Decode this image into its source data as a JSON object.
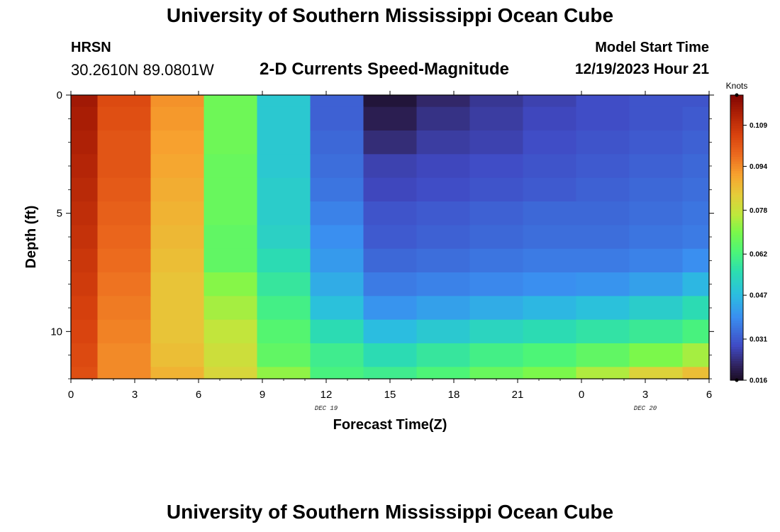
{
  "header": {
    "title": "University of Southern Mississippi Ocean Cube",
    "station": "HRSN",
    "coords": "30.2610N  89.0801W",
    "subtitle": "2-D Currents Speed-Magnitude",
    "start_label": "Model Start Time",
    "start_value": "12/19/2023 Hour 21"
  },
  "footer": {
    "title": "University of Southern Mississippi Ocean Cube"
  },
  "chart_data": {
    "type": "heatmap",
    "title": "2-D Currents Speed-Magnitude",
    "xlabel": "Forecast Time(Z)",
    "ylabel": "Depth (ft)",
    "x_tick_labels": [
      "0",
      "3",
      "6",
      "9",
      "12",
      "15",
      "18",
      "21",
      "0",
      "3",
      "6"
    ],
    "x_range_hours": [
      0,
      30
    ],
    "date_labels": [
      {
        "text": "DEC 19",
        "hour": 12
      },
      {
        "text": "DEC 20",
        "hour": 27
      }
    ],
    "y_ticks": [
      0,
      5,
      10
    ],
    "y_range_ft": [
      0,
      12
    ],
    "time_edges": [
      0,
      1.25,
      3.75,
      6.25,
      8.75,
      11.25,
      13.75,
      16.25,
      18.75,
      21.25,
      23.75,
      26.25,
      28.75,
      30
    ],
    "depth_edges": [
      0,
      0.5,
      1.5,
      2.5,
      3.5,
      4.5,
      5.5,
      6.5,
      7.5,
      8.5,
      9.5,
      10.5,
      11.5,
      12
    ],
    "values": [
      [
        0.115,
        0.104,
        0.093,
        0.068,
        0.05,
        0.032,
        0.018,
        0.022,
        0.025,
        0.027,
        0.029,
        0.03,
        0.03
      ],
      [
        0.114,
        0.103,
        0.092,
        0.068,
        0.05,
        0.032,
        0.02,
        0.024,
        0.026,
        0.028,
        0.029,
        0.03,
        0.031
      ],
      [
        0.113,
        0.102,
        0.091,
        0.068,
        0.05,
        0.033,
        0.023,
        0.026,
        0.027,
        0.029,
        0.03,
        0.031,
        0.032
      ],
      [
        0.112,
        0.102,
        0.09,
        0.067,
        0.05,
        0.034,
        0.027,
        0.028,
        0.029,
        0.03,
        0.031,
        0.032,
        0.033
      ],
      [
        0.111,
        0.101,
        0.089,
        0.067,
        0.051,
        0.035,
        0.028,
        0.029,
        0.03,
        0.031,
        0.032,
        0.033,
        0.034
      ],
      [
        0.11,
        0.1,
        0.088,
        0.067,
        0.051,
        0.037,
        0.03,
        0.031,
        0.032,
        0.033,
        0.033,
        0.034,
        0.035
      ],
      [
        0.109,
        0.099,
        0.087,
        0.066,
        0.052,
        0.039,
        0.031,
        0.032,
        0.033,
        0.034,
        0.034,
        0.035,
        0.036
      ],
      [
        0.108,
        0.098,
        0.086,
        0.066,
        0.055,
        0.041,
        0.033,
        0.034,
        0.035,
        0.036,
        0.036,
        0.037,
        0.039
      ],
      [
        0.107,
        0.097,
        0.085,
        0.071,
        0.058,
        0.044,
        0.036,
        0.037,
        0.038,
        0.039,
        0.04,
        0.042,
        0.046
      ],
      [
        0.106,
        0.096,
        0.085,
        0.074,
        0.061,
        0.048,
        0.04,
        0.042,
        0.044,
        0.046,
        0.048,
        0.051,
        0.055
      ],
      [
        0.105,
        0.095,
        0.085,
        0.077,
        0.064,
        0.055,
        0.047,
        0.05,
        0.053,
        0.055,
        0.057,
        0.059,
        0.062
      ],
      [
        0.104,
        0.094,
        0.086,
        0.079,
        0.066,
        0.06,
        0.055,
        0.058,
        0.061,
        0.063,
        0.066,
        0.07,
        0.074
      ],
      [
        0.103,
        0.094,
        0.088,
        0.081,
        0.072,
        0.062,
        0.06,
        0.063,
        0.067,
        0.07,
        0.075,
        0.082,
        0.086
      ]
    ],
    "colorbar": {
      "label": "Knots",
      "vmin": 0.016,
      "vmax": 0.12,
      "ticks": [
        "0.109",
        "0.094",
        "0.078",
        "0.062",
        "0.047",
        "0.031",
        "0.016"
      ]
    }
  }
}
